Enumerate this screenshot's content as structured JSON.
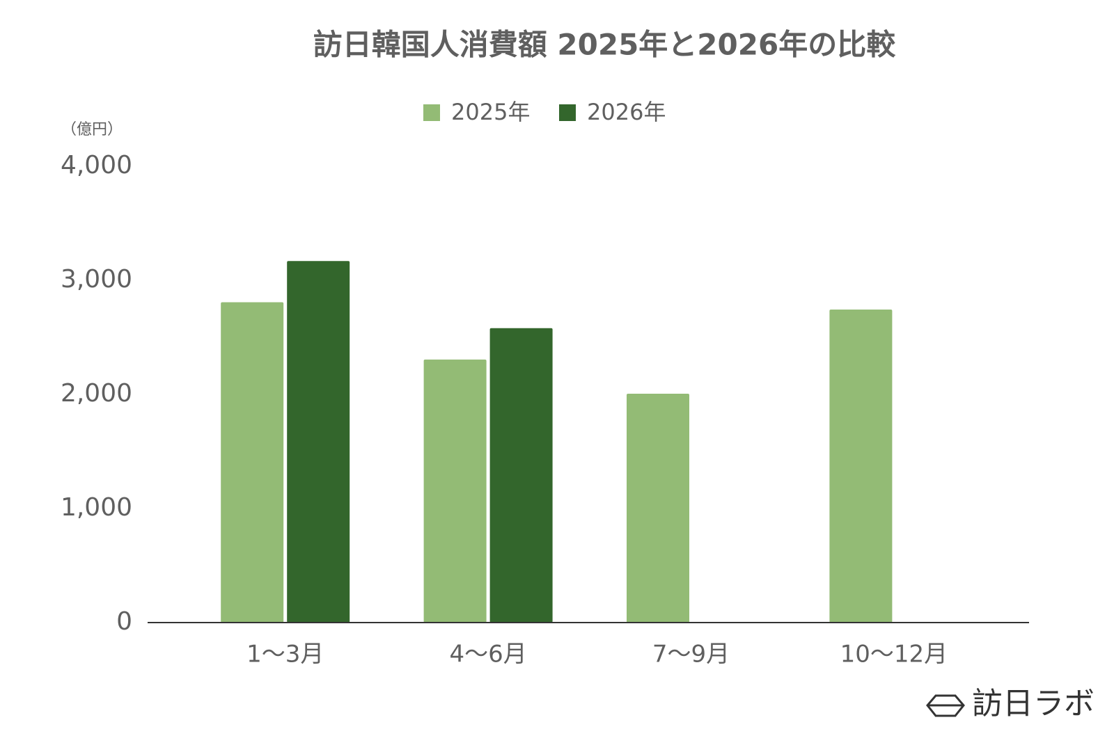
{
  "chart_data": {
    "type": "bar",
    "title": "訪日韓国人消費額 2025年と2026年の比較",
    "y_axis_label": "（億円）",
    "categories": [
      "1〜3月",
      "4〜6月",
      "7〜9月",
      "10〜12月"
    ],
    "series": [
      {
        "name": "2025年",
        "color": "#93bb75",
        "values": [
          2808,
          2306,
          2006,
          2744
        ]
      },
      {
        "name": "2026年",
        "color": "#33662c",
        "values": [
          3169,
          2581,
          null,
          null
        ]
      }
    ],
    "ylim": [
      0,
      4000
    ],
    "yticks": [
      0,
      {
        "value": 1000,
        "label": "1,000"
      },
      {
        "value": 2000,
        "label": "2,000"
      },
      {
        "value": 3000,
        "label": "3,000"
      },
      {
        "value": 4000,
        "label": "4,000"
      }
    ],
    "grid": false,
    "legend": "top",
    "watermark": "訪日ラボ"
  }
}
